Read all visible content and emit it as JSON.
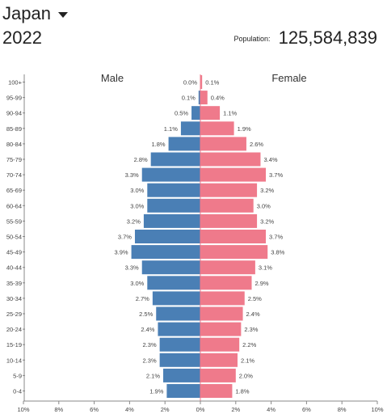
{
  "header": {
    "country": "Japan",
    "year": "2022",
    "population_label": "Population:",
    "population_value": "125,584,839"
  },
  "chart_data": {
    "type": "bar",
    "orientation": "horizontal-butterfly",
    "categories": [
      "100+",
      "95-99",
      "90-94",
      "85-89",
      "80-84",
      "75-79",
      "70-74",
      "65-69",
      "60-64",
      "55-59",
      "50-54",
      "45-49",
      "40-44",
      "35-39",
      "30-34",
      "25-29",
      "20-24",
      "15-19",
      "10-14",
      "5-9",
      "0-4"
    ],
    "series": [
      {
        "name": "Male",
        "color": "#4a7fb5",
        "values": [
          0.0,
          0.1,
          0.5,
          1.1,
          1.8,
          2.8,
          3.3,
          3.0,
          3.0,
          3.2,
          3.7,
          3.9,
          3.3,
          3.0,
          2.7,
          2.5,
          2.4,
          2.3,
          2.3,
          2.1,
          1.9
        ],
        "labels": [
          "0.0%",
          "0.1%",
          "0.5%",
          "1.1%",
          "1.8%",
          "2.8%",
          "3.3%",
          "3.0%",
          "3.0%",
          "3.2%",
          "3.7%",
          "3.9%",
          "3.3%",
          "3.0%",
          "2.7%",
          "2.5%",
          "2.4%",
          "2.3%",
          "2.3%",
          "2.1%",
          "1.9%"
        ]
      },
      {
        "name": "Female",
        "color": "#ef7a8b",
        "values": [
          0.1,
          0.4,
          1.1,
          1.9,
          2.6,
          3.4,
          3.7,
          3.2,
          3.0,
          3.2,
          3.7,
          3.8,
          3.1,
          2.9,
          2.5,
          2.4,
          2.3,
          2.2,
          2.1,
          2.0,
          1.8
        ],
        "labels": [
          "0.1%",
          "0.4%",
          "1.1%",
          "1.9%",
          "2.6%",
          "3.4%",
          "3.7%",
          "3.2%",
          "3.0%",
          "3.2%",
          "3.7%",
          "3.8%",
          "3.1%",
          "2.9%",
          "2.5%",
          "2.4%",
          "2.3%",
          "2.2%",
          "2.1%",
          "2.0%",
          "1.8%"
        ]
      }
    ],
    "xlim": [
      -10,
      10
    ],
    "x_ticks": [
      "10%",
      "8%",
      "6%",
      "4%",
      "2%",
      "0%",
      "2%",
      "4%",
      "6%",
      "8%",
      "10%"
    ],
    "grid": false,
    "legend": "top"
  }
}
